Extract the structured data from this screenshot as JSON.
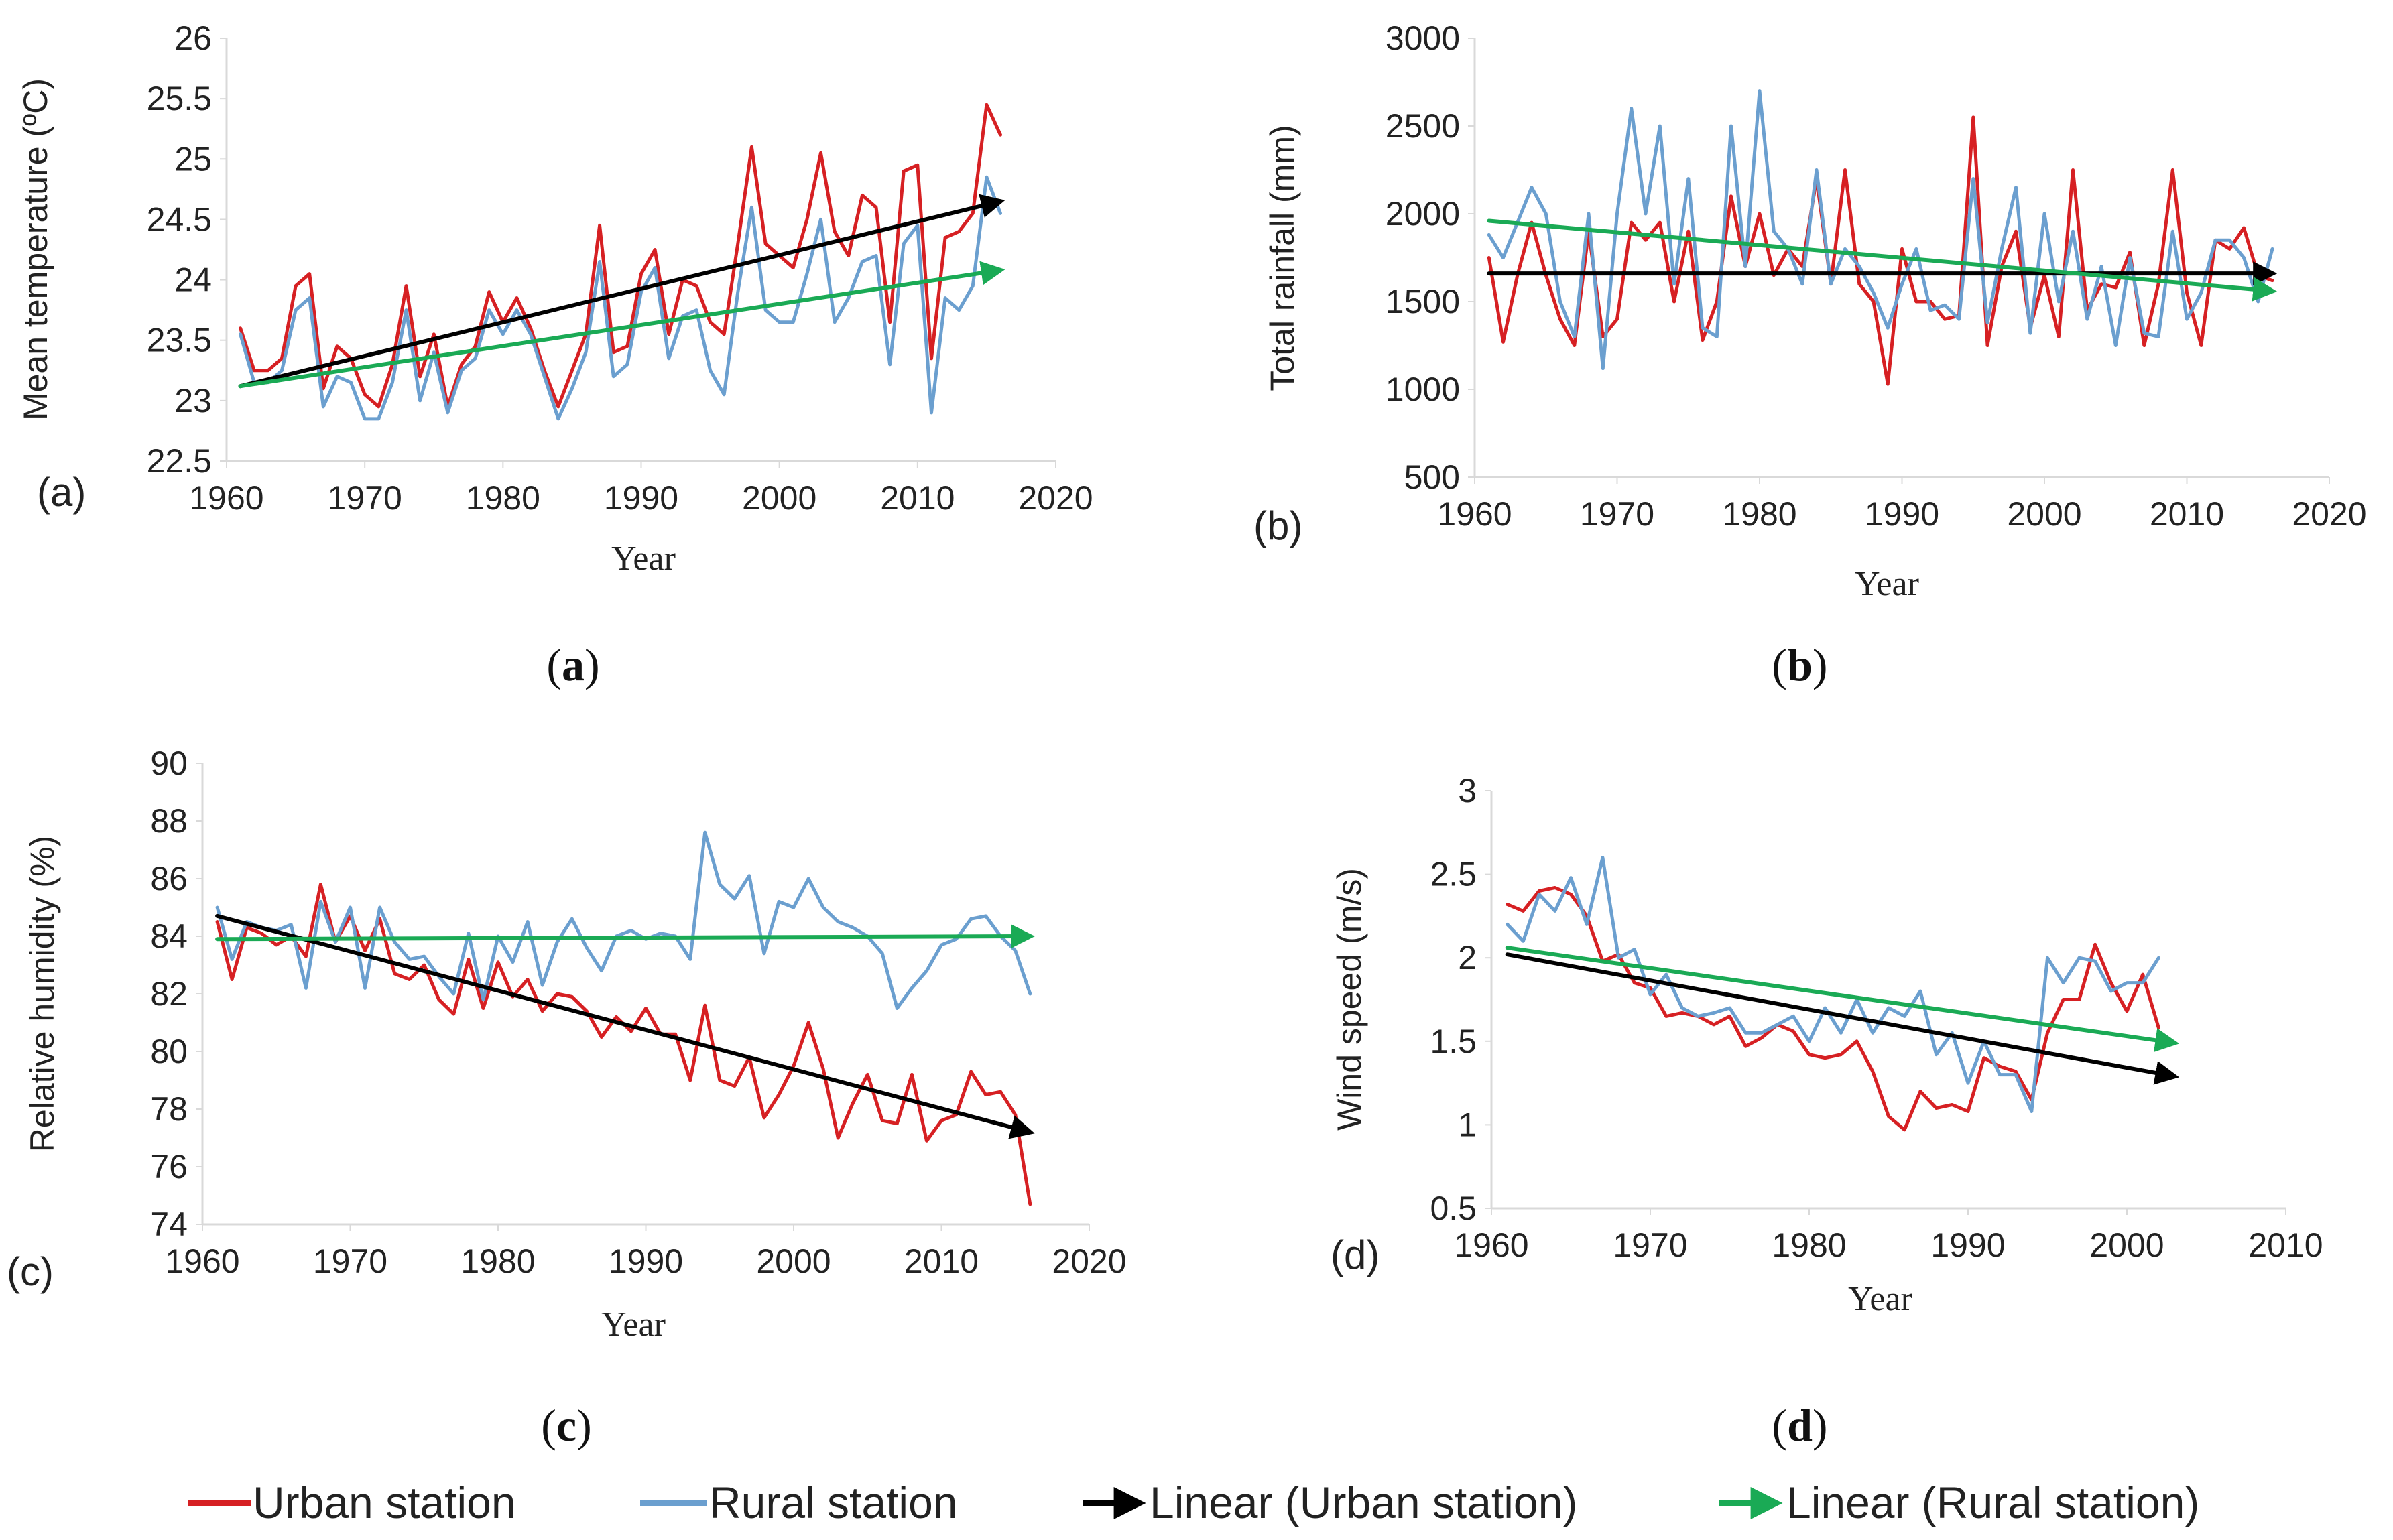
{
  "colors": {
    "urban": "#d62023",
    "rural": "#6b9fcf",
    "urban_trend": "#000000",
    "rural_trend": "#1aaa55"
  },
  "legend": {
    "urban": "Urban station",
    "rural": "Rural station",
    "urban_trend": "Linear (Urban station)",
    "rural_trend": "Linear (Rural station)"
  },
  "chart_data": [
    {
      "id": "a",
      "type": "line",
      "panel_label": "(a)",
      "caption_letter": "a",
      "title": "",
      "xlabel": "Year",
      "ylabel": "Mean temperature (ºC)",
      "xlim": [
        1960,
        2020
      ],
      "ylim": [
        22.5,
        26
      ],
      "xticks": [
        1960,
        1970,
        1980,
        1990,
        2000,
        2010,
        2020
      ],
      "yticks": [
        22.5,
        23,
        23.5,
        24,
        24.5,
        25,
        25.5,
        26
      ],
      "ytick_labels": [
        "22.5",
        "23",
        "23.5",
        "24",
        "24.5",
        "25",
        "25.5",
        "26"
      ],
      "series": [
        {
          "name": "Urban station",
          "color_key": "urban",
          "x_start": 1961,
          "values": [
            23.6,
            23.25,
            23.25,
            23.35,
            23.95,
            24.05,
            23.1,
            23.45,
            23.35,
            23.05,
            22.95,
            23.3,
            23.95,
            23.2,
            23.55,
            22.95,
            23.3,
            23.45,
            23.9,
            23.65,
            23.85,
            23.6,
            23.25,
            22.95,
            23.25,
            23.55,
            24.45,
            23.4,
            23.45,
            24.05,
            24.25,
            23.55,
            24.0,
            23.95,
            23.65,
            23.55,
            24.3,
            25.1,
            24.3,
            24.2,
            24.1,
            24.5,
            25.05,
            24.4,
            24.2,
            24.7,
            24.6,
            23.65,
            24.9,
            24.95,
            23.35,
            24.35,
            24.4,
            24.55,
            25.45,
            25.2
          ]
        },
        {
          "name": "Rural station",
          "color_key": "rural",
          "x_start": 1961,
          "values": [
            23.55,
            23.15,
            23.15,
            23.25,
            23.75,
            23.85,
            22.95,
            23.2,
            23.15,
            22.85,
            22.85,
            23.15,
            23.75,
            23.0,
            23.4,
            22.9,
            23.25,
            23.35,
            23.75,
            23.55,
            23.75,
            23.55,
            23.2,
            22.85,
            23.1,
            23.4,
            24.15,
            23.2,
            23.3,
            23.9,
            24.1,
            23.35,
            23.7,
            23.75,
            23.25,
            23.05,
            23.9,
            24.6,
            23.75,
            23.65,
            23.65,
            24.05,
            24.5,
            23.65,
            23.85,
            24.15,
            24.2,
            23.3,
            24.3,
            24.45,
            22.9,
            23.85,
            23.75,
            23.95,
            24.85,
            24.55
          ]
        },
        {
          "name": "Linear (Urban station)",
          "color_key": "urban_trend",
          "trend": true,
          "x": [
            1961,
            2016
          ],
          "values": [
            23.12,
            24.65
          ]
        },
        {
          "name": "Linear (Rural station)",
          "color_key": "rural_trend",
          "trend": true,
          "x": [
            1961,
            2016
          ],
          "values": [
            23.12,
            24.08
          ]
        }
      ]
    },
    {
      "id": "b",
      "type": "line",
      "panel_label": "(b)",
      "caption_letter": "b",
      "title": "",
      "xlabel": "Year",
      "ylabel": "Total rainfall (mm)",
      "xlim": [
        1960,
        2020
      ],
      "ylim": [
        500,
        3000
      ],
      "xticks": [
        1960,
        1970,
        1980,
        1990,
        2000,
        2010,
        2020
      ],
      "yticks": [
        500,
        1000,
        1500,
        2000,
        2500,
        3000
      ],
      "ytick_labels": [
        "500",
        "1000",
        "1500",
        "2000",
        "2500",
        "3000"
      ],
      "series": [
        {
          "name": "Urban station",
          "color_key": "urban",
          "x_start": 1961,
          "values": [
            1750,
            1270,
            1650,
            1950,
            1650,
            1400,
            1250,
            1900,
            1300,
            1400,
            1950,
            1850,
            1950,
            1500,
            1900,
            1280,
            1500,
            2100,
            1700,
            2000,
            1650,
            1800,
            1700,
            2200,
            1600,
            2250,
            1600,
            1500,
            1030,
            1800,
            1500,
            1500,
            1400,
            1420,
            2550,
            1250,
            1700,
            1900,
            1350,
            1650,
            1300,
            2250,
            1450,
            1600,
            1580,
            1780,
            1250,
            1600,
            2250,
            1550,
            1250,
            1850,
            1800,
            1920,
            1650,
            1620
          ]
        },
        {
          "name": "Rural station",
          "color_key": "rural",
          "x_start": 1961,
          "values": [
            1880,
            1750,
            1950,
            2150,
            2000,
            1500,
            1300,
            2000,
            1120,
            2000,
            2600,
            2000,
            2500,
            1600,
            2200,
            1350,
            1300,
            2500,
            1700,
            2700,
            1900,
            1800,
            1600,
            2250,
            1600,
            1800,
            1700,
            1550,
            1350,
            1600,
            1800,
            1450,
            1480,
            1400,
            2200,
            1380,
            1800,
            2150,
            1320,
            2000,
            1500,
            1900,
            1400,
            1700,
            1250,
            1750,
            1320,
            1300,
            1900,
            1400,
            1550,
            1850,
            1850,
            1750,
            1500,
            1800
          ]
        },
        {
          "name": "Linear (Urban station)",
          "color_key": "urban_trend",
          "trend": true,
          "x": [
            1961,
            2016
          ],
          "values": [
            1660,
            1660
          ]
        },
        {
          "name": "Linear (Rural station)",
          "color_key": "rural_trend",
          "trend": true,
          "x": [
            1961,
            2016
          ],
          "values": [
            1960,
            1560
          ]
        }
      ]
    },
    {
      "id": "c",
      "type": "line",
      "panel_label": "(c)",
      "caption_letter": "c",
      "title": "",
      "xlabel": "Year",
      "ylabel": "Relative humidity (%)",
      "xlim": [
        1960,
        2020
      ],
      "ylim": [
        74,
        90
      ],
      "xticks": [
        1960,
        1970,
        1980,
        1990,
        2000,
        2010,
        2020
      ],
      "yticks": [
        74,
        76,
        78,
        80,
        82,
        84,
        86,
        88,
        90
      ],
      "ytick_labels": [
        "74",
        "76",
        "78",
        "80",
        "82",
        "84",
        "86",
        "88",
        "90"
      ],
      "series": [
        {
          "name": "Urban station",
          "color_key": "urban",
          "x_start": 1961,
          "values": [
            84.5,
            82.5,
            84.3,
            84.1,
            83.7,
            84.0,
            83.3,
            85.8,
            83.8,
            84.7,
            83.5,
            84.6,
            82.7,
            82.5,
            83.0,
            81.8,
            81.3,
            83.2,
            81.5,
            83.1,
            81.9,
            82.5,
            81.4,
            82.0,
            81.9,
            81.4,
            80.5,
            81.2,
            80.7,
            81.5,
            80.6,
            80.6,
            79.0,
            81.6,
            79.0,
            78.8,
            79.8,
            77.7,
            78.5,
            79.5,
            81.0,
            79.4,
            77.0,
            78.2,
            79.2,
            77.6,
            77.5,
            79.2,
            76.9,
            77.6,
            77.8,
            79.3,
            78.5,
            78.6,
            77.8,
            74.7
          ]
        },
        {
          "name": "Rural station",
          "color_key": "rural",
          "x_start": 1961,
          "values": [
            85.0,
            83.2,
            84.5,
            84.3,
            84.2,
            84.4,
            82.2,
            85.2,
            83.8,
            85.0,
            82.2,
            85.0,
            83.8,
            83.2,
            83.3,
            82.6,
            82.0,
            84.1,
            81.8,
            84.0,
            83.1,
            84.5,
            82.3,
            83.8,
            84.6,
            83.6,
            82.8,
            84.0,
            84.2,
            83.9,
            84.1,
            84.0,
            83.2,
            87.6,
            85.8,
            85.3,
            86.1,
            83.4,
            85.2,
            85.0,
            86.0,
            85.0,
            84.5,
            84.3,
            84.0,
            83.4,
            81.5,
            82.2,
            82.8,
            83.7,
            83.9,
            84.6,
            84.7,
            84.0,
            83.5,
            82.0
          ]
        },
        {
          "name": "Linear (Urban station)",
          "color_key": "urban_trend",
          "trend": true,
          "x": [
            1961,
            2016
          ],
          "values": [
            84.7,
            77.2
          ]
        },
        {
          "name": "Linear (Rural station)",
          "color_key": "rural_trend",
          "trend": true,
          "x": [
            1961,
            2016
          ],
          "values": [
            83.9,
            84.0
          ]
        }
      ]
    },
    {
      "id": "d",
      "type": "line",
      "panel_label": "(d)",
      "caption_letter": "d",
      "title": "",
      "xlabel": "Year",
      "ylabel": "Wind speed (m/s)",
      "xlim": [
        1960,
        2010
      ],
      "ylim": [
        0.5,
        3
      ],
      "xticks": [
        1960,
        1970,
        1980,
        1990,
        2000,
        2010
      ],
      "yticks": [
        0.5,
        1,
        1.5,
        2,
        2.5,
        3
      ],
      "ytick_labels": [
        "0.5",
        "1",
        "1.5",
        "2",
        "2.5",
        "3"
      ],
      "series": [
        {
          "name": "Urban station",
          "color_key": "urban",
          "x_start": 1961,
          "values": [
            2.32,
            2.28,
            2.4,
            2.42,
            2.38,
            2.25,
            1.98,
            2.02,
            1.85,
            1.82,
            1.65,
            1.67,
            1.65,
            1.6,
            1.65,
            1.47,
            1.52,
            1.6,
            1.56,
            1.42,
            1.4,
            1.42,
            1.5,
            1.32,
            1.05,
            0.97,
            1.2,
            1.1,
            1.12,
            1.08,
            1.4,
            1.35,
            1.32,
            1.15,
            1.55,
            1.75,
            1.75,
            2.08,
            1.85,
            1.68,
            1.9,
            1.58
          ]
        },
        {
          "name": "Rural station",
          "color_key": "rural",
          "x_start": 1961,
          "values": [
            2.2,
            2.1,
            2.38,
            2.28,
            2.48,
            2.2,
            2.6,
            2.0,
            2.05,
            1.78,
            1.9,
            1.7,
            1.65,
            1.67,
            1.7,
            1.55,
            1.55,
            1.6,
            1.65,
            1.5,
            1.7,
            1.55,
            1.75,
            1.55,
            1.7,
            1.65,
            1.8,
            1.42,
            1.55,
            1.25,
            1.5,
            1.3,
            1.3,
            1.08,
            2.0,
            1.85,
            2.0,
            1.98,
            1.8,
            1.85,
            1.85,
            2.0
          ]
        },
        {
          "name": "Linear (Urban station)",
          "color_key": "urban_trend",
          "trend": true,
          "x": [
            1961,
            2003
          ],
          "values": [
            2.02,
            1.29
          ]
        },
        {
          "name": "Linear (Rural station)",
          "color_key": "rural_trend",
          "trend": true,
          "x": [
            1961,
            2003
          ],
          "values": [
            2.06,
            1.49
          ]
        }
      ]
    }
  ]
}
